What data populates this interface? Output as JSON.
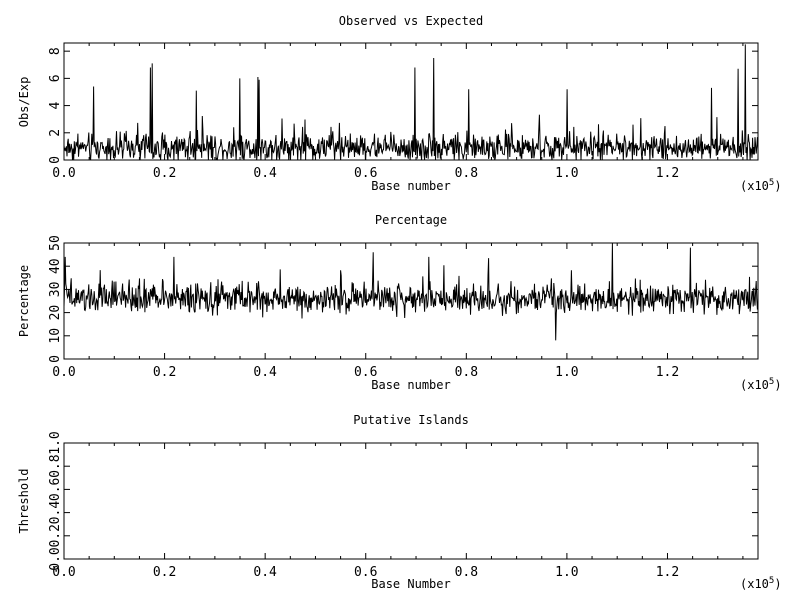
{
  "chart_data": [
    {
      "type": "line",
      "title": "Observed vs Expected",
      "xlabel": "Base number",
      "ylabel": "Obs/Exp",
      "x_multiplier_label": "(x10",
      "x_multiplier_exp": "5",
      "x_multiplier_close": ")",
      "xlim": [
        0,
        138000
      ],
      "ylim": [
        0,
        8.6
      ],
      "xticks": [
        0,
        20000,
        40000,
        60000,
        80000,
        100000,
        120000
      ],
      "xtick_labels": [
        "0.0",
        "0.2",
        "0.4",
        "0.6",
        "0.8",
        "1.0",
        "1.2"
      ],
      "yticks": [
        0,
        2,
        4,
        6,
        8
      ],
      "ytick_labels": [
        "0",
        "2",
        "4",
        "6",
        "8"
      ],
      "grid": false,
      "signal": {
        "n": 1150,
        "base": 0.9,
        "spread": 1.5,
        "min": 0,
        "spikes": [
          [
            5900,
            5.4
          ],
          [
            17200,
            6.8
          ],
          [
            17500,
            7.1
          ],
          [
            26300,
            5.1
          ],
          [
            35000,
            6.0
          ],
          [
            38500,
            6.1
          ],
          [
            38800,
            5.9
          ],
          [
            69800,
            6.8
          ],
          [
            73500,
            7.5
          ],
          [
            80500,
            5.2
          ],
          [
            100000,
            5.2
          ],
          [
            128800,
            5.3
          ],
          [
            134000,
            6.7
          ],
          [
            135500,
            8.5
          ]
        ]
      }
    },
    {
      "type": "line",
      "title": "Percentage",
      "xlabel": "Base number",
      "ylabel": "Percentage",
      "x_multiplier_label": "(x10",
      "x_multiplier_exp": "5",
      "x_multiplier_close": ")",
      "xlim": [
        0,
        138000
      ],
      "ylim": [
        0,
        50
      ],
      "xticks": [
        0,
        20000,
        40000,
        60000,
        80000,
        100000,
        120000
      ],
      "xtick_labels": [
        "0.0",
        "0.2",
        "0.4",
        "0.6",
        "0.8",
        "1.0",
        "1.2"
      ],
      "yticks": [
        0,
        10,
        20,
        30,
        40,
        50
      ],
      "ytick_labels": [
        "0",
        "10",
        "20",
        "30",
        "40",
        "50"
      ],
      "grid": false,
      "signal": {
        "n": 1150,
        "base": 26,
        "spread": 9,
        "min": 8,
        "spikes": [
          [
            300,
            44
          ],
          [
            21800,
            44
          ],
          [
            61500,
            46
          ],
          [
            72500,
            44
          ],
          [
            97800,
            8
          ],
          [
            109000,
            50
          ],
          [
            124500,
            48
          ]
        ]
      }
    },
    {
      "type": "line",
      "title": "Putative Islands",
      "xlabel": "Base Number",
      "ylabel": "Threshold",
      "x_multiplier_label": "(x10",
      "x_multiplier_exp": "5",
      "x_multiplier_close": ")",
      "xlim": [
        0,
        138000
      ],
      "ylim": [
        0,
        1
      ],
      "xticks": [
        0,
        20000,
        40000,
        60000,
        80000,
        100000,
        120000
      ],
      "xtick_labels": [
        "0.0",
        "0.2",
        "0.4",
        "0.6",
        "0.8",
        "1.0",
        "1.2"
      ],
      "yticks": [
        0,
        0.2,
        0.4,
        0.6,
        0.8,
        1.0
      ],
      "ytick_labels": [
        "0.0",
        "0.2",
        "0.4",
        "0.6",
        "0.8",
        "1.0"
      ],
      "grid": false,
      "series": []
    }
  ]
}
